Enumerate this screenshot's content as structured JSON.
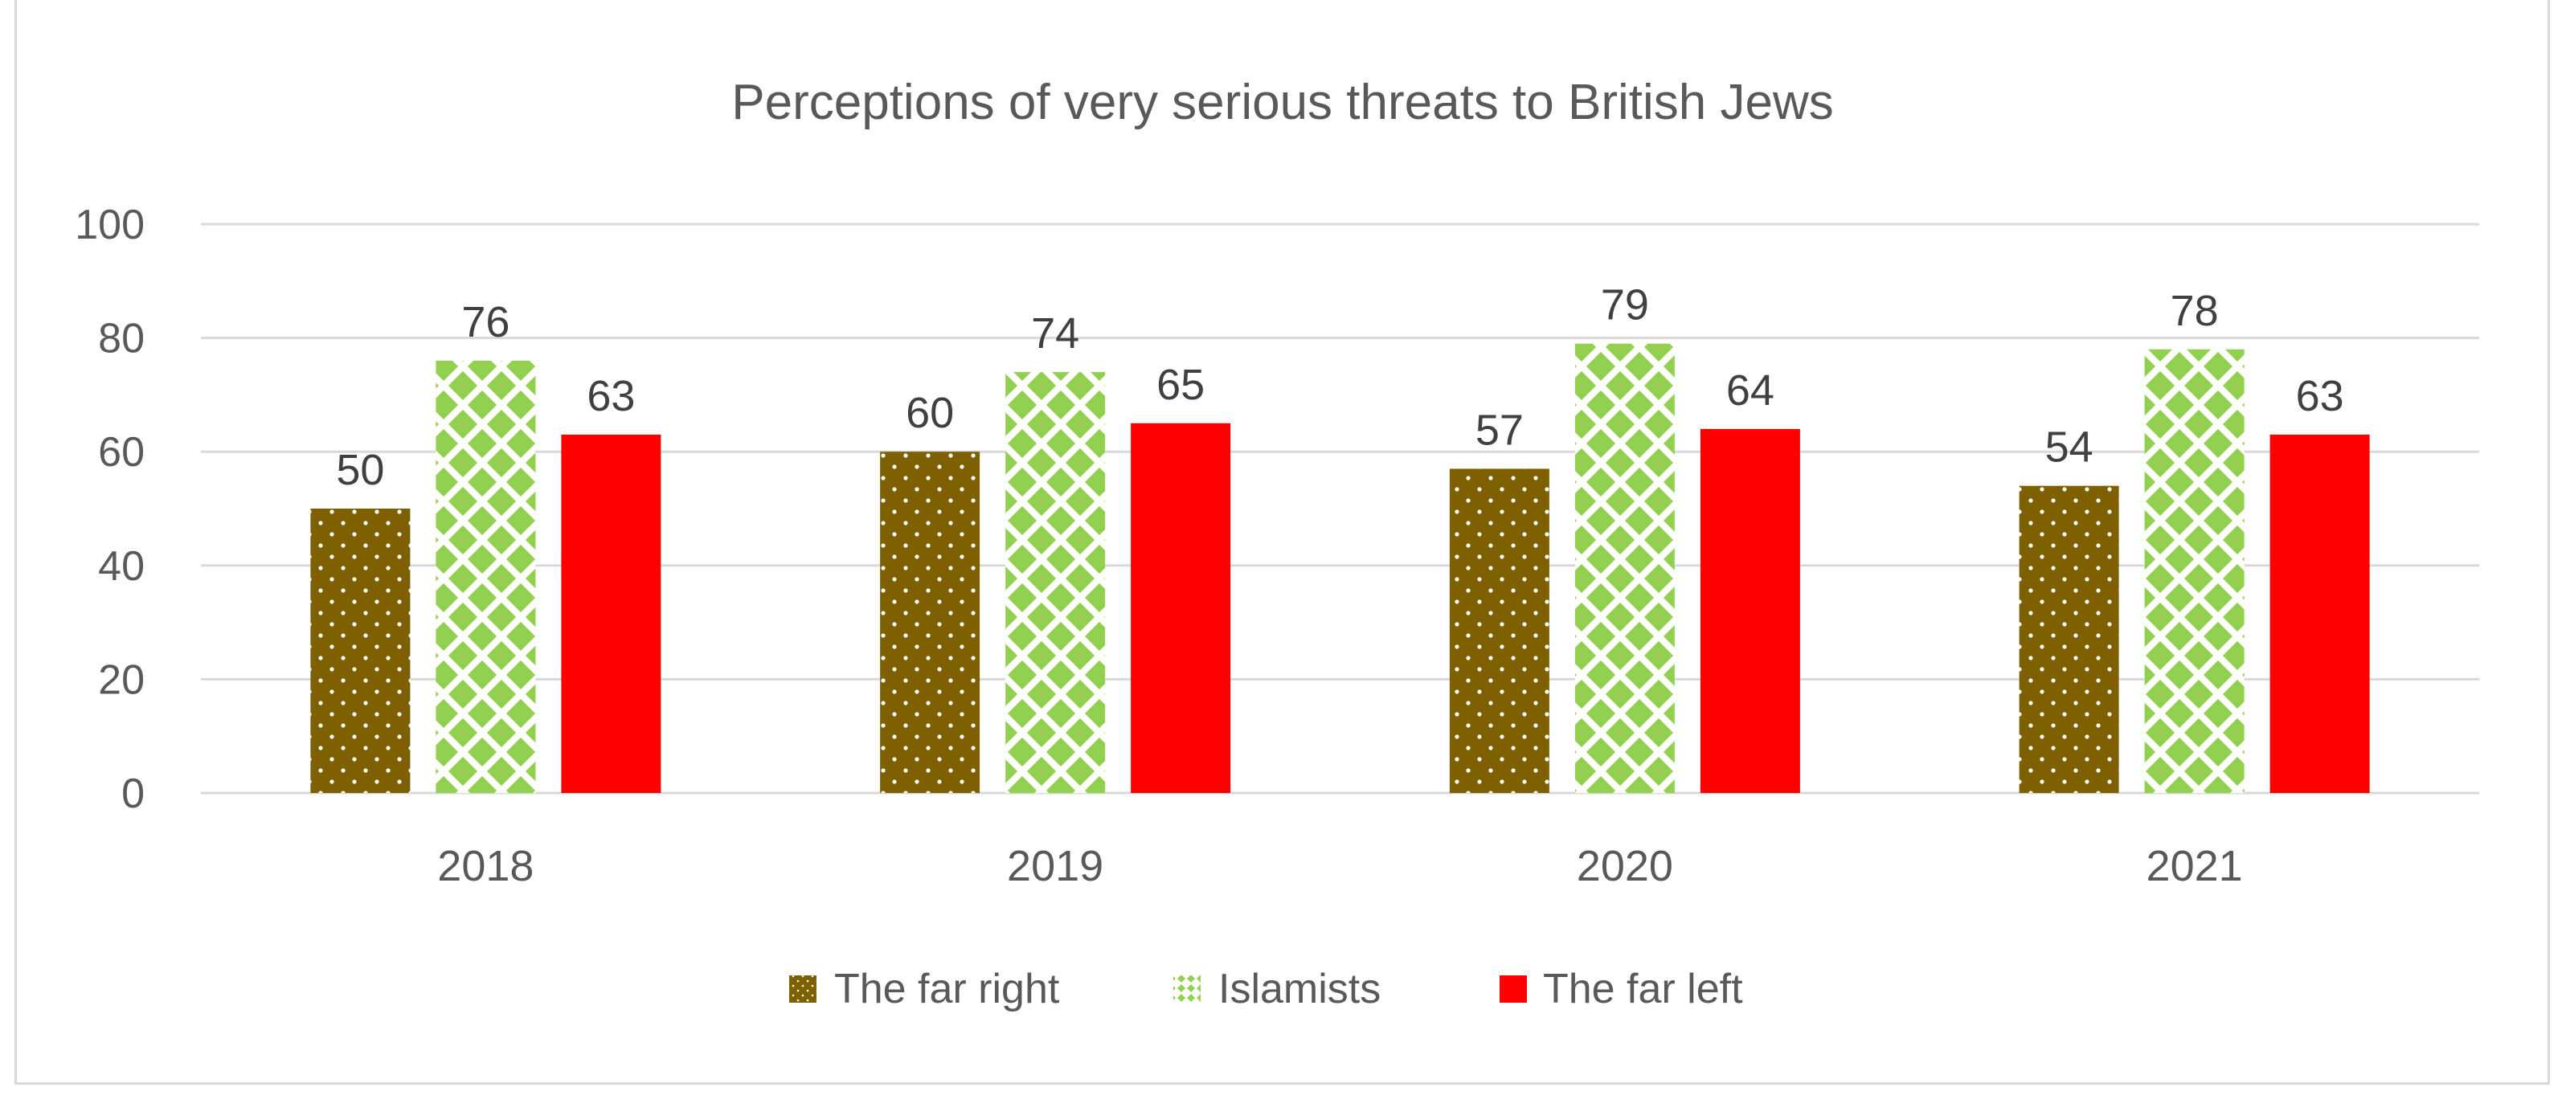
{
  "chart_data": {
    "type": "bar",
    "title": "Perceptions of very serious threats to British Jews",
    "xlabel": "",
    "ylabel": "",
    "categories": [
      "2018",
      "2019",
      "2020",
      "2021"
    ],
    "series": [
      {
        "name": "The far right",
        "values": [
          50,
          60,
          57,
          54
        ],
        "color": "#7f6000",
        "pattern": "dots"
      },
      {
        "name": "Islamists",
        "values": [
          76,
          74,
          79,
          78
        ],
        "color": "#92d050",
        "pattern": "diamonds"
      },
      {
        "name": "The far left",
        "values": [
          63,
          65,
          64,
          63
        ],
        "color": "#ff0000",
        "pattern": "solid"
      }
    ],
    "ylim": [
      0,
      100
    ],
    "yticks": [
      "0",
      "20",
      "40",
      "60",
      "80",
      "100"
    ],
    "grid": true,
    "legend_position": "bottom",
    "data_labels": true
  }
}
